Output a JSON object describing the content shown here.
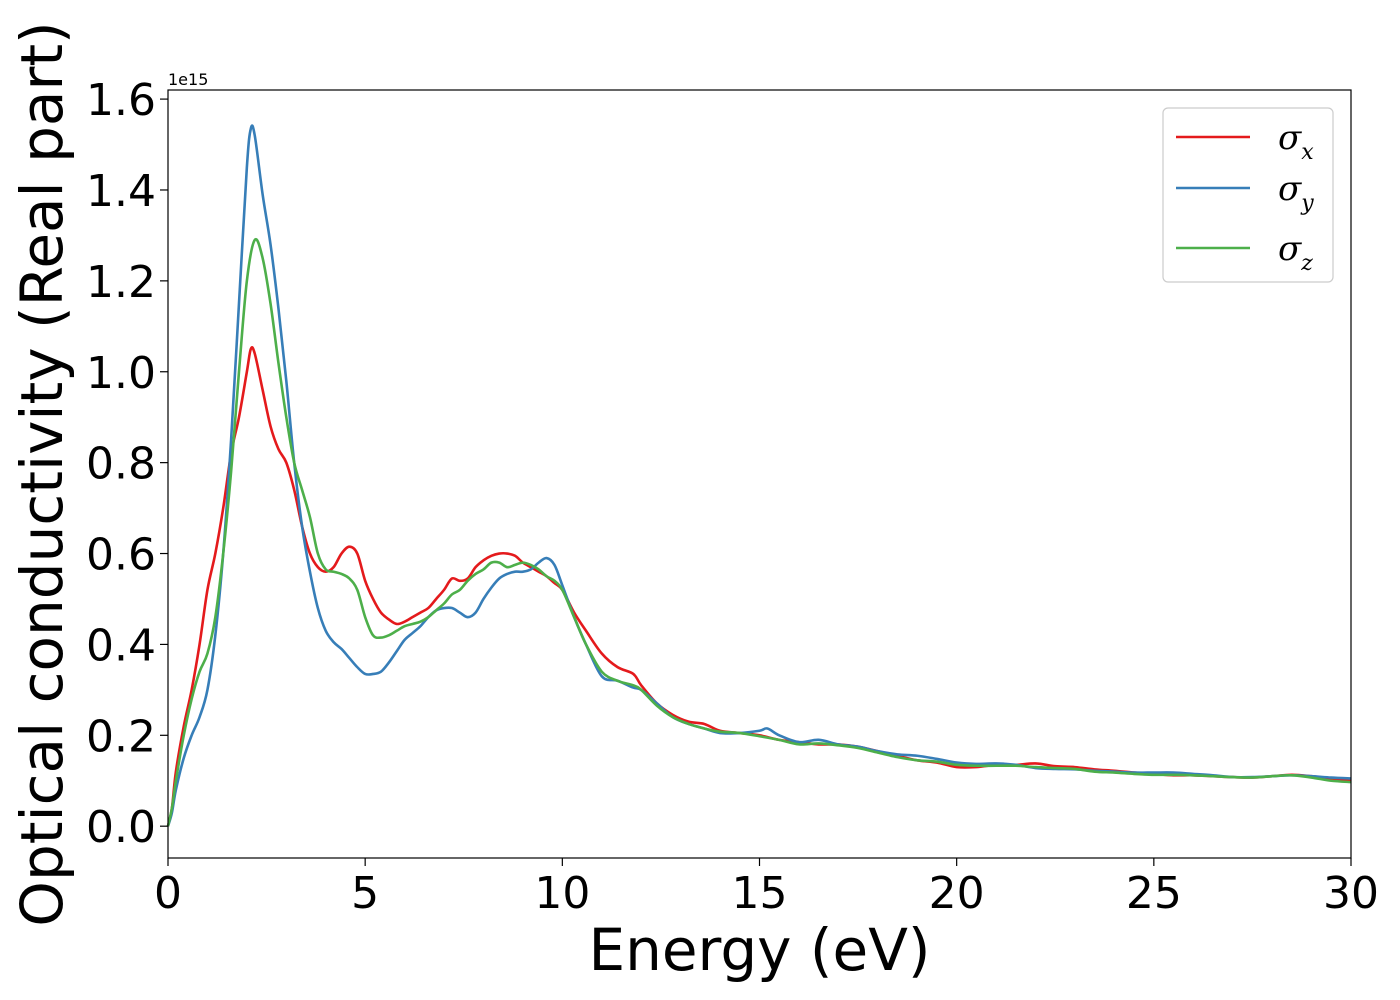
{
  "chart_data": {
    "type": "line",
    "title": "",
    "xlabel": "Energy (eV)",
    "ylabel": "Optical conductivity (Real part)",
    "y_offset_label": "1e15",
    "xlim": [
      0,
      30
    ],
    "ylim": [
      -0.07,
      1.62
    ],
    "x_ticks": [
      0,
      5,
      10,
      15,
      20,
      25,
      30
    ],
    "x_tick_labels": [
      "0",
      "5",
      "10",
      "15",
      "20",
      "25",
      "30"
    ],
    "y_ticks": [
      0.0,
      0.2,
      0.4,
      0.6,
      0.8,
      1.0,
      1.2,
      1.4,
      1.6
    ],
    "y_tick_labels": [
      "0.0",
      "0.2",
      "0.4",
      "0.6",
      "0.8",
      "1.0",
      "1.2",
      "1.4",
      "1.6"
    ],
    "grid": false,
    "legend_position": "top-right",
    "series": [
      {
        "name": "σx",
        "legend_base": "σ",
        "legend_sub": "x",
        "color": "#e41a1c",
        "points": [
          [
            0,
            0.0
          ],
          [
            0.1,
            0.04
          ],
          [
            0.2,
            0.12
          ],
          [
            0.4,
            0.22
          ],
          [
            0.6,
            0.3
          ],
          [
            0.8,
            0.4
          ],
          [
            1.0,
            0.52
          ],
          [
            1.2,
            0.6
          ],
          [
            1.4,
            0.7
          ],
          [
            1.6,
            0.82
          ],
          [
            1.8,
            0.9
          ],
          [
            2.0,
            1.0
          ],
          [
            2.1,
            1.05
          ],
          [
            2.2,
            1.04
          ],
          [
            2.4,
            0.96
          ],
          [
            2.6,
            0.88
          ],
          [
            2.8,
            0.83
          ],
          [
            3.0,
            0.8
          ],
          [
            3.2,
            0.74
          ],
          [
            3.4,
            0.66
          ],
          [
            3.6,
            0.6
          ],
          [
            3.8,
            0.57
          ],
          [
            4.0,
            0.56
          ],
          [
            4.2,
            0.57
          ],
          [
            4.4,
            0.6
          ],
          [
            4.6,
            0.615
          ],
          [
            4.8,
            0.6
          ],
          [
            5.0,
            0.54
          ],
          [
            5.2,
            0.5
          ],
          [
            5.4,
            0.47
          ],
          [
            5.6,
            0.455
          ],
          [
            5.8,
            0.445
          ],
          [
            6.0,
            0.45
          ],
          [
            6.2,
            0.46
          ],
          [
            6.4,
            0.47
          ],
          [
            6.6,
            0.48
          ],
          [
            6.8,
            0.5
          ],
          [
            7.0,
            0.52
          ],
          [
            7.2,
            0.545
          ],
          [
            7.4,
            0.54
          ],
          [
            7.6,
            0.545
          ],
          [
            7.8,
            0.57
          ],
          [
            8.0,
            0.585
          ],
          [
            8.2,
            0.595
          ],
          [
            8.4,
            0.6
          ],
          [
            8.6,
            0.6
          ],
          [
            8.8,
            0.595
          ],
          [
            9.0,
            0.58
          ],
          [
            9.2,
            0.57
          ],
          [
            9.4,
            0.56
          ],
          [
            9.6,
            0.55
          ],
          [
            9.8,
            0.535
          ],
          [
            10.0,
            0.52
          ],
          [
            10.3,
            0.47
          ],
          [
            10.6,
            0.43
          ],
          [
            11.0,
            0.38
          ],
          [
            11.4,
            0.35
          ],
          [
            11.8,
            0.335
          ],
          [
            12.0,
            0.31
          ],
          [
            12.4,
            0.27
          ],
          [
            12.8,
            0.245
          ],
          [
            13.2,
            0.23
          ],
          [
            13.6,
            0.225
          ],
          [
            14.0,
            0.21
          ],
          [
            14.5,
            0.205
          ],
          [
            15.0,
            0.2
          ],
          [
            15.5,
            0.19
          ],
          [
            16.0,
            0.185
          ],
          [
            16.5,
            0.18
          ],
          [
            17.0,
            0.18
          ],
          [
            17.5,
            0.175
          ],
          [
            18.0,
            0.165
          ],
          [
            18.5,
            0.155
          ],
          [
            19.0,
            0.145
          ],
          [
            19.5,
            0.14
          ],
          [
            20.0,
            0.13
          ],
          [
            20.5,
            0.13
          ],
          [
            21.0,
            0.135
          ],
          [
            21.5,
            0.135
          ],
          [
            22.0,
            0.138
          ],
          [
            22.5,
            0.132
          ],
          [
            23.0,
            0.13
          ],
          [
            23.5,
            0.125
          ],
          [
            24.0,
            0.122
          ],
          [
            24.5,
            0.118
          ],
          [
            25.0,
            0.115
          ],
          [
            25.5,
            0.112
          ],
          [
            26.0,
            0.112
          ],
          [
            26.5,
            0.11
          ],
          [
            27.0,
            0.108
          ],
          [
            27.5,
            0.107
          ],
          [
            28.0,
            0.11
          ],
          [
            28.5,
            0.113
          ],
          [
            29.0,
            0.11
          ],
          [
            29.5,
            0.105
          ],
          [
            30.0,
            0.1
          ]
        ]
      },
      {
        "name": "σy",
        "legend_base": "σ",
        "legend_sub": "y",
        "color": "#377eb8",
        "points": [
          [
            0,
            0.0
          ],
          [
            0.1,
            0.03
          ],
          [
            0.2,
            0.08
          ],
          [
            0.4,
            0.15
          ],
          [
            0.6,
            0.2
          ],
          [
            0.8,
            0.24
          ],
          [
            1.0,
            0.3
          ],
          [
            1.2,
            0.42
          ],
          [
            1.4,
            0.6
          ],
          [
            1.6,
            0.85
          ],
          [
            1.8,
            1.15
          ],
          [
            2.0,
            1.45
          ],
          [
            2.1,
            1.535
          ],
          [
            2.2,
            1.52
          ],
          [
            2.4,
            1.39
          ],
          [
            2.6,
            1.28
          ],
          [
            2.8,
            1.14
          ],
          [
            3.0,
            0.98
          ],
          [
            3.2,
            0.8
          ],
          [
            3.4,
            0.66
          ],
          [
            3.6,
            0.56
          ],
          [
            3.8,
            0.48
          ],
          [
            4.0,
            0.43
          ],
          [
            4.2,
            0.405
          ],
          [
            4.4,
            0.39
          ],
          [
            4.6,
            0.37
          ],
          [
            4.8,
            0.35
          ],
          [
            5.0,
            0.335
          ],
          [
            5.2,
            0.335
          ],
          [
            5.4,
            0.34
          ],
          [
            5.6,
            0.36
          ],
          [
            5.8,
            0.385
          ],
          [
            6.0,
            0.41
          ],
          [
            6.2,
            0.425
          ],
          [
            6.4,
            0.44
          ],
          [
            6.6,
            0.46
          ],
          [
            6.8,
            0.475
          ],
          [
            7.0,
            0.48
          ],
          [
            7.2,
            0.48
          ],
          [
            7.4,
            0.47
          ],
          [
            7.6,
            0.46
          ],
          [
            7.8,
            0.47
          ],
          [
            8.0,
            0.5
          ],
          [
            8.2,
            0.525
          ],
          [
            8.4,
            0.545
          ],
          [
            8.6,
            0.555
          ],
          [
            8.8,
            0.56
          ],
          [
            9.0,
            0.56
          ],
          [
            9.2,
            0.565
          ],
          [
            9.4,
            0.58
          ],
          [
            9.6,
            0.59
          ],
          [
            9.8,
            0.575
          ],
          [
            10.0,
            0.53
          ],
          [
            10.3,
            0.46
          ],
          [
            10.6,
            0.4
          ],
          [
            11.0,
            0.33
          ],
          [
            11.4,
            0.32
          ],
          [
            11.8,
            0.305
          ],
          [
            12.0,
            0.3
          ],
          [
            12.4,
            0.27
          ],
          [
            12.8,
            0.24
          ],
          [
            13.2,
            0.225
          ],
          [
            13.6,
            0.215
          ],
          [
            14.0,
            0.205
          ],
          [
            14.5,
            0.205
          ],
          [
            15.0,
            0.21
          ],
          [
            15.2,
            0.215
          ],
          [
            15.5,
            0.2
          ],
          [
            16.0,
            0.185
          ],
          [
            16.5,
            0.19
          ],
          [
            17.0,
            0.18
          ],
          [
            17.5,
            0.175
          ],
          [
            18.0,
            0.165
          ],
          [
            18.5,
            0.158
          ],
          [
            19.0,
            0.155
          ],
          [
            19.5,
            0.148
          ],
          [
            20.0,
            0.14
          ],
          [
            20.5,
            0.137
          ],
          [
            21.0,
            0.138
          ],
          [
            21.5,
            0.135
          ],
          [
            22.0,
            0.128
          ],
          [
            22.5,
            0.126
          ],
          [
            23.0,
            0.125
          ],
          [
            23.5,
            0.122
          ],
          [
            24.0,
            0.12
          ],
          [
            24.5,
            0.118
          ],
          [
            25.0,
            0.118
          ],
          [
            25.5,
            0.118
          ],
          [
            26.0,
            0.115
          ],
          [
            26.5,
            0.112
          ],
          [
            27.0,
            0.108
          ],
          [
            27.5,
            0.108
          ],
          [
            28.0,
            0.11
          ],
          [
            28.5,
            0.112
          ],
          [
            29.0,
            0.11
          ],
          [
            29.5,
            0.107
          ],
          [
            30.0,
            0.105
          ]
        ]
      },
      {
        "name": "σz",
        "legend_base": "σ",
        "legend_sub": "z",
        "color": "#4daf4a",
        "points": [
          [
            0,
            0.0
          ],
          [
            0.1,
            0.04
          ],
          [
            0.2,
            0.1
          ],
          [
            0.4,
            0.2
          ],
          [
            0.6,
            0.28
          ],
          [
            0.8,
            0.34
          ],
          [
            1.0,
            0.38
          ],
          [
            1.2,
            0.46
          ],
          [
            1.4,
            0.6
          ],
          [
            1.6,
            0.78
          ],
          [
            1.8,
            1.0
          ],
          [
            2.0,
            1.2
          ],
          [
            2.2,
            1.29
          ],
          [
            2.4,
            1.25
          ],
          [
            2.6,
            1.15
          ],
          [
            2.8,
            1.02
          ],
          [
            3.0,
            0.9
          ],
          [
            3.2,
            0.8
          ],
          [
            3.4,
            0.74
          ],
          [
            3.6,
            0.68
          ],
          [
            3.8,
            0.6
          ],
          [
            4.0,
            0.565
          ],
          [
            4.2,
            0.56
          ],
          [
            4.4,
            0.555
          ],
          [
            4.6,
            0.545
          ],
          [
            4.8,
            0.52
          ],
          [
            5.0,
            0.46
          ],
          [
            5.2,
            0.42
          ],
          [
            5.4,
            0.415
          ],
          [
            5.6,
            0.42
          ],
          [
            5.8,
            0.43
          ],
          [
            6.0,
            0.44
          ],
          [
            6.2,
            0.445
          ],
          [
            6.4,
            0.45
          ],
          [
            6.6,
            0.46
          ],
          [
            6.8,
            0.475
          ],
          [
            7.0,
            0.49
          ],
          [
            7.2,
            0.51
          ],
          [
            7.4,
            0.52
          ],
          [
            7.6,
            0.54
          ],
          [
            7.8,
            0.555
          ],
          [
            8.0,
            0.565
          ],
          [
            8.2,
            0.58
          ],
          [
            8.4,
            0.58
          ],
          [
            8.6,
            0.57
          ],
          [
            8.8,
            0.575
          ],
          [
            9.0,
            0.58
          ],
          [
            9.2,
            0.575
          ],
          [
            9.4,
            0.565
          ],
          [
            9.6,
            0.55
          ],
          [
            9.8,
            0.54
          ],
          [
            10.0,
            0.52
          ],
          [
            10.3,
            0.46
          ],
          [
            10.6,
            0.4
          ],
          [
            11.0,
            0.34
          ],
          [
            11.4,
            0.32
          ],
          [
            11.8,
            0.31
          ],
          [
            12.0,
            0.3
          ],
          [
            12.4,
            0.265
          ],
          [
            12.8,
            0.24
          ],
          [
            13.2,
            0.225
          ],
          [
            13.6,
            0.215
          ],
          [
            14.0,
            0.208
          ],
          [
            14.5,
            0.205
          ],
          [
            15.0,
            0.198
          ],
          [
            15.5,
            0.19
          ],
          [
            16.0,
            0.18
          ],
          [
            16.5,
            0.182
          ],
          [
            17.0,
            0.178
          ],
          [
            17.5,
            0.172
          ],
          [
            18.0,
            0.162
          ],
          [
            18.5,
            0.152
          ],
          [
            19.0,
            0.145
          ],
          [
            19.5,
            0.142
          ],
          [
            20.0,
            0.135
          ],
          [
            20.5,
            0.133
          ],
          [
            21.0,
            0.133
          ],
          [
            21.5,
            0.133
          ],
          [
            22.0,
            0.13
          ],
          [
            22.5,
            0.128
          ],
          [
            23.0,
            0.126
          ],
          [
            23.5,
            0.12
          ],
          [
            24.0,
            0.118
          ],
          [
            24.5,
            0.115
          ],
          [
            25.0,
            0.113
          ],
          [
            25.5,
            0.113
          ],
          [
            26.0,
            0.112
          ],
          [
            26.5,
            0.11
          ],
          [
            27.0,
            0.108
          ],
          [
            27.5,
            0.107
          ],
          [
            28.0,
            0.11
          ],
          [
            28.5,
            0.112
          ],
          [
            29.0,
            0.107
          ],
          [
            29.5,
            0.1
          ],
          [
            30.0,
            0.097
          ]
        ]
      }
    ]
  }
}
